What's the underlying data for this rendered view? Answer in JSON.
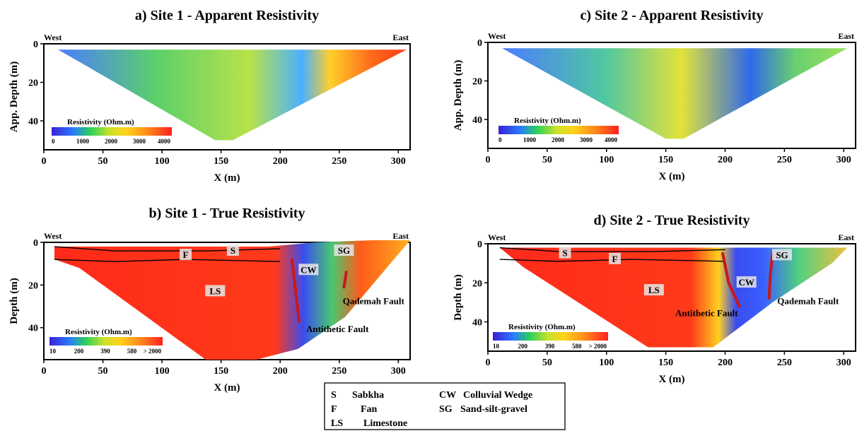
{
  "chart_data": [
    {
      "id": "a",
      "type": "heatmap",
      "title": "a) Site 1 - Apparent Resistivity",
      "xlabel": "X (m)",
      "ylabel": "App. Depth (m)",
      "xlim": [
        0,
        310
      ],
      "ylim": [
        0,
        55
      ],
      "xticks": [
        0,
        50,
        100,
        150,
        200,
        250,
        300
      ],
      "yticks": [
        0,
        20,
        40
      ],
      "direction_labels": [
        "West",
        "East"
      ],
      "colorbar": {
        "title": "Resistivity (Ohm.m)",
        "ticks": [
          "0",
          "1000",
          "2000",
          "3000",
          "4000"
        ]
      },
      "section_outline": [
        [
          12,
          3
        ],
        [
          307,
          3
        ],
        [
          160,
          50
        ],
        [
          145,
          50
        ]
      ],
      "units": [],
      "faults": [],
      "annotations": []
    },
    {
      "id": "b",
      "type": "heatmap",
      "title": "b) Site 1 - True Resistivity",
      "xlabel": "X (m)",
      "ylabel": "Depth (m)",
      "xlim": [
        0,
        310
      ],
      "ylim": [
        0,
        55
      ],
      "xticks": [
        0,
        50,
        100,
        150,
        200,
        250,
        300
      ],
      "yticks": [
        0,
        20,
        40
      ],
      "direction_labels": [
        "West",
        "East"
      ],
      "colorbar": {
        "title": "Resistivity (Ohm.m)",
        "ticks": [
          "10",
          "200",
          "390",
          "580",
          "> 2000"
        ]
      },
      "section_outline": [
        [
          9,
          2
        ],
        [
          190,
          2
        ],
        [
          230,
          0
        ],
        [
          278,
          -1
        ],
        [
          310,
          -1
        ],
        [
          255,
          35
        ],
        [
          215,
          50
        ],
        [
          180,
          55
        ],
        [
          137,
          55
        ],
        [
          30,
          12
        ],
        [
          9,
          8
        ]
      ],
      "units": [
        {
          "label": "S",
          "x": 160,
          "y": 5
        },
        {
          "label": "F",
          "x": 120,
          "y": 7
        },
        {
          "label": "LS",
          "x": 145,
          "y": 24
        },
        {
          "label": "CW",
          "x": 224,
          "y": 14
        },
        {
          "label": "SG",
          "x": 254,
          "y": 5
        }
      ],
      "faults": [
        {
          "name": "Antithetic Fault",
          "path": [
            [
              210,
              8
            ],
            [
              213,
              22
            ],
            [
              216,
              37
            ]
          ]
        },
        {
          "name": "Qademah Fault",
          "path": [
            [
              256,
              14
            ],
            [
              254,
              21
            ]
          ]
        }
      ],
      "annotations": [
        {
          "text": "Qademah Fault",
          "x": 253,
          "y": 29
        },
        {
          "text": "Antithetic Fault",
          "x": 222,
          "y": 42
        }
      ]
    },
    {
      "id": "c",
      "type": "heatmap",
      "title": "c) Site 2 - Apparent Resistivity",
      "xlabel": "X (m)",
      "ylabel": "App. Depth (m)",
      "xlim": [
        0,
        310
      ],
      "ylim": [
        0,
        55
      ],
      "xticks": [
        0,
        50,
        100,
        150,
        200,
        250,
        300
      ],
      "yticks": [
        0,
        20,
        40
      ],
      "direction_labels": [
        "West",
        "East"
      ],
      "colorbar": {
        "title": "Resistivity (Ohm.m)",
        "ticks": [
          "0",
          "1000",
          "2000",
          "3000",
          "4000"
        ]
      },
      "section_outline": [
        [
          12,
          3
        ],
        [
          303,
          3
        ],
        [
          165,
          50
        ],
        [
          150,
          50
        ]
      ],
      "units": [],
      "faults": [],
      "annotations": []
    },
    {
      "id": "d",
      "type": "heatmap",
      "title": "d) Site 2 - True Resistivity",
      "xlabel": "X (m)",
      "ylabel": "Depth (m)",
      "xlim": [
        0,
        310
      ],
      "ylim": [
        0,
        55
      ],
      "xticks": [
        0,
        50,
        100,
        150,
        200,
        250,
        300
      ],
      "yticks": [
        0,
        20,
        40
      ],
      "direction_labels": [
        "West",
        "East"
      ],
      "colorbar": {
        "title": "Resistivity (Ohm.m)",
        "ticks": [
          "10",
          "200",
          "390",
          "580",
          "> 2000"
        ]
      },
      "section_outline": [
        [
          10,
          2
        ],
        [
          303,
          2
        ],
        [
          290,
          10
        ],
        [
          240,
          30
        ],
        [
          190,
          53
        ],
        [
          135,
          53
        ],
        [
          30,
          12
        ]
      ],
      "units": [
        {
          "label": "S",
          "x": 65,
          "y": 6
        },
        {
          "label": "F",
          "x": 107,
          "y": 9
        },
        {
          "label": "LS",
          "x": 140,
          "y": 25
        },
        {
          "label": "CW",
          "x": 218,
          "y": 21
        },
        {
          "label": "SG",
          "x": 248,
          "y": 7
        }
      ],
      "faults": [
        {
          "name": "Antithetic Fault",
          "path": [
            [
              198,
              5
            ],
            [
              203,
              20
            ],
            [
              212,
              32
            ]
          ]
        },
        {
          "name": "Qademah Fault",
          "path": [
            [
              240,
              5
            ],
            [
              238,
              17
            ],
            [
              237,
              28
            ]
          ]
        }
      ],
      "annotations": [
        {
          "text": "Qademah Fault",
          "x": 244,
          "y": 31
        },
        {
          "text": "Antithetic Fault",
          "x": 158,
          "y": 37
        }
      ]
    }
  ],
  "legend": [
    {
      "code": "S",
      "name": "Sabkha"
    },
    {
      "code": "CW",
      "name": "Colluvial Wedge"
    },
    {
      "code": "F",
      "name": "Fan"
    },
    {
      "code": "SG",
      "name": "Sand-silt-gravel"
    },
    {
      "code": "LS",
      "name": "Limestone"
    }
  ]
}
